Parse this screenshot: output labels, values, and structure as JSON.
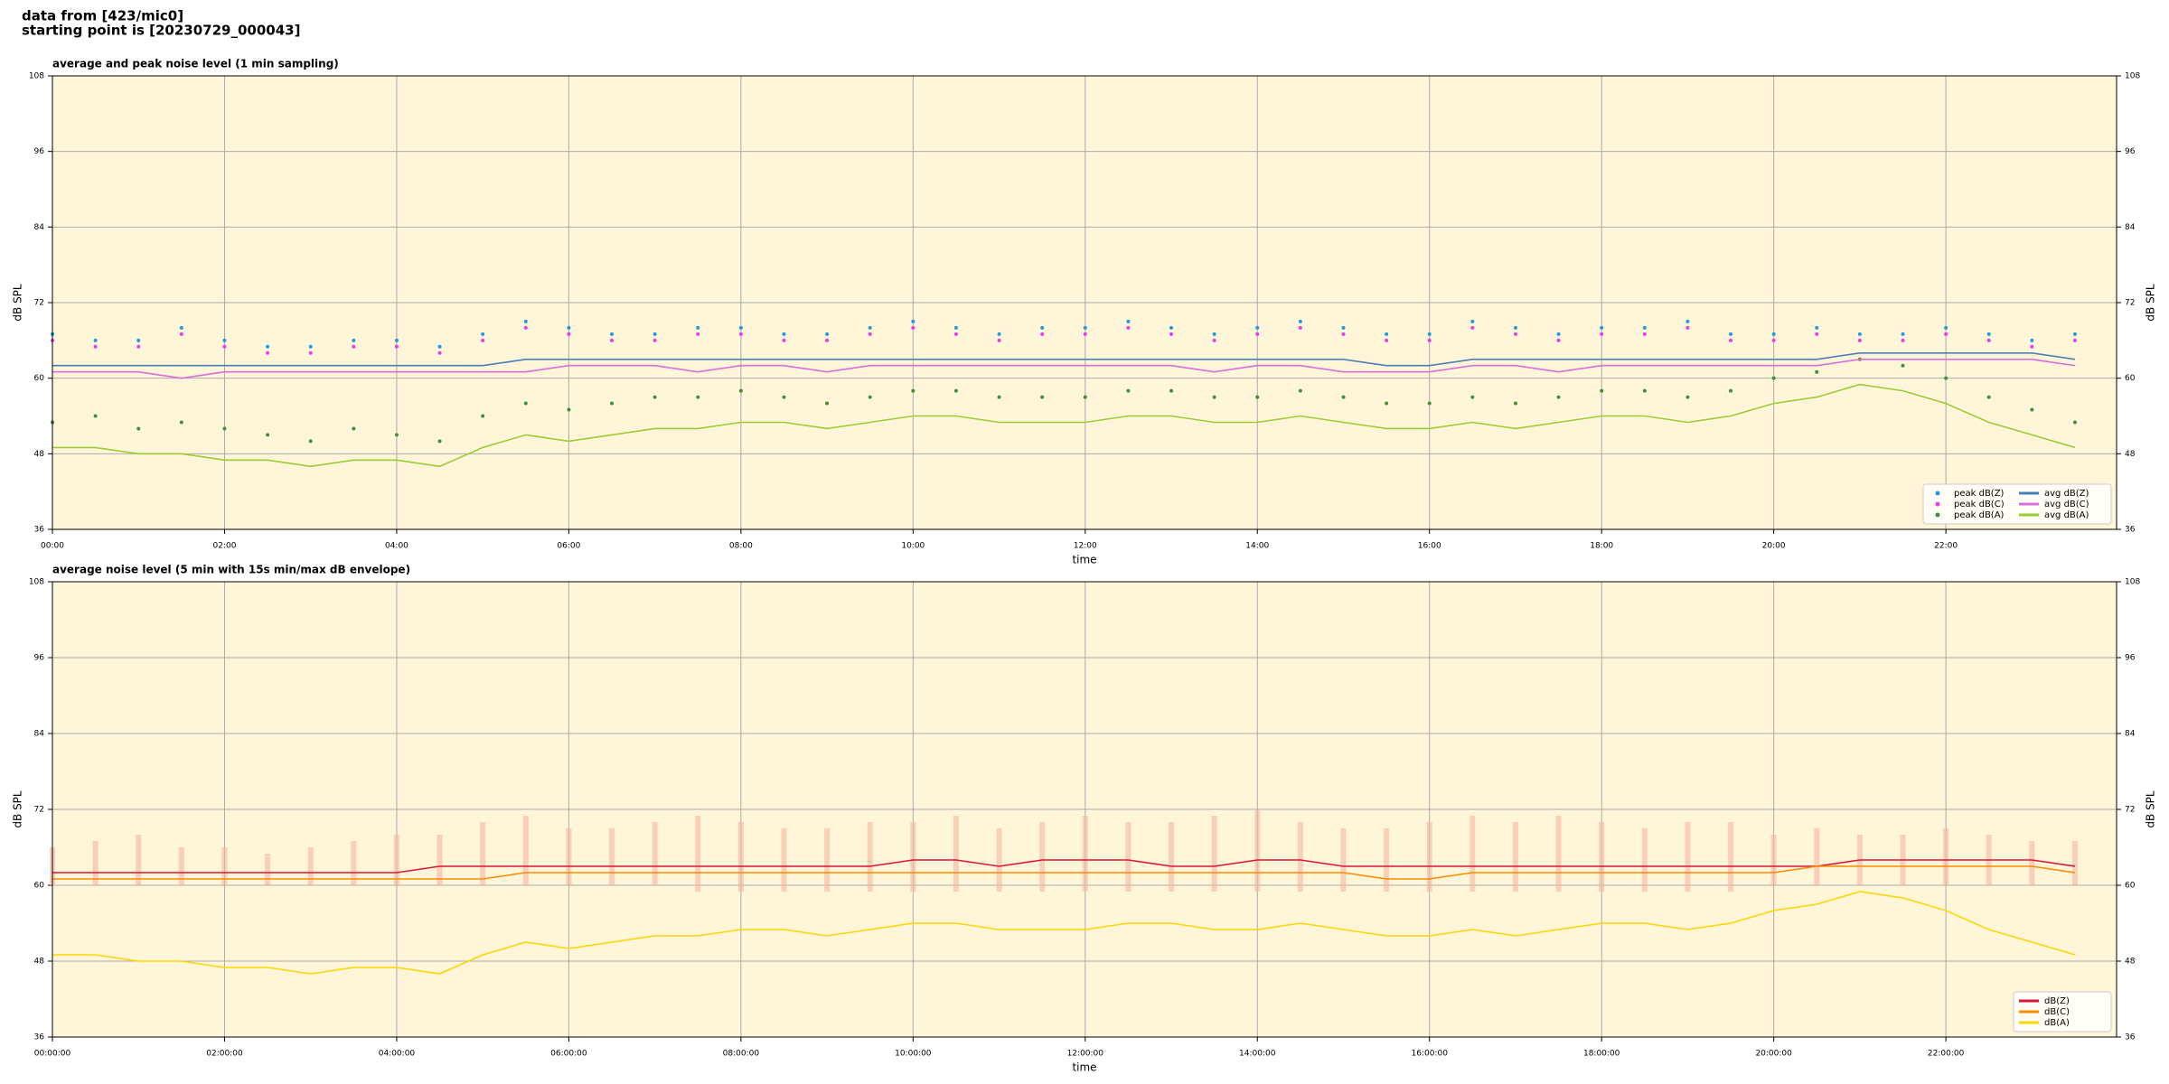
{
  "header": {
    "line1": "data from [423/mic0]",
    "line2": "starting point is [20230729_000043]"
  },
  "chart_data": [
    {
      "type": "line",
      "title": "average and peak noise level (1 min sampling)",
      "xlabel": "time",
      "ylabel": "dB SPL",
      "background": "#fff5d9",
      "grid": true,
      "legend": "lower right",
      "x": [
        "00:00",
        "00:30",
        "01:00",
        "01:30",
        "02:00",
        "02:30",
        "03:00",
        "03:30",
        "04:00",
        "04:30",
        "05:00",
        "05:30",
        "06:00",
        "06:30",
        "07:00",
        "07:30",
        "08:00",
        "08:30",
        "09:00",
        "09:30",
        "10:00",
        "10:30",
        "11:00",
        "11:30",
        "12:00",
        "12:30",
        "13:00",
        "13:30",
        "14:00",
        "14:30",
        "15:00",
        "15:30",
        "16:00",
        "16:30",
        "17:00",
        "17:30",
        "18:00",
        "18:30",
        "19:00",
        "19:30",
        "20:00",
        "20:30",
        "21:00",
        "21:30",
        "22:00",
        "22:30",
        "23:00",
        "23:30"
      ],
      "xlim": [
        "00:00",
        "23:59"
      ],
      "xticks": [
        "00:00",
        "02:00",
        "04:00",
        "06:00",
        "08:00",
        "10:00",
        "12:00",
        "14:00",
        "16:00",
        "18:00",
        "20:00",
        "22:00"
      ],
      "ylim": [
        36,
        108
      ],
      "yticks": [
        36,
        48,
        60,
        72,
        84,
        96,
        108
      ],
      "series": [
        {
          "name": "peak dB(Z)",
          "color": "#1f9be0",
          "mark": "dot",
          "values": [
            67,
            66,
            66,
            68,
            66,
            65,
            65,
            66,
            66,
            65,
            67,
            69,
            68,
            67,
            67,
            68,
            68,
            67,
            67,
            68,
            69,
            68,
            67,
            68,
            68,
            69,
            68,
            67,
            68,
            69,
            68,
            67,
            67,
            69,
            68,
            67,
            68,
            68,
            69,
            67,
            67,
            68,
            67,
            67,
            68,
            67,
            66,
            67
          ]
        },
        {
          "name": "peak dB(C)",
          "color": "#e83ee8",
          "mark": "dot",
          "values": [
            66,
            65,
            65,
            67,
            65,
            64,
            64,
            65,
            65,
            64,
            66,
            68,
            67,
            66,
            66,
            67,
            67,
            66,
            66,
            67,
            68,
            67,
            66,
            67,
            67,
            68,
            67,
            66,
            67,
            68,
            67,
            66,
            66,
            68,
            67,
            66,
            67,
            67,
            68,
            66,
            66,
            67,
            66,
            66,
            67,
            66,
            65,
            66
          ]
        },
        {
          "name": "peak dB(A)",
          "color": "#3f8f3f",
          "mark": "dot",
          "values": [
            53,
            54,
            52,
            53,
            52,
            51,
            50,
            52,
            51,
            50,
            54,
            56,
            55,
            56,
            57,
            57,
            58,
            57,
            56,
            57,
            58,
            58,
            57,
            57,
            57,
            58,
            58,
            57,
            57,
            58,
            57,
            56,
            56,
            57,
            56,
            57,
            58,
            58,
            57,
            58,
            60,
            61,
            63,
            62,
            60,
            57,
            55,
            53
          ]
        },
        {
          "name": "avg dB(Z)",
          "color": "#4a7fb5",
          "mark": "line",
          "values": [
            62,
            62,
            62,
            62,
            62,
            62,
            62,
            62,
            62,
            62,
            62,
            63,
            63,
            63,
            63,
            63,
            63,
            63,
            63,
            63,
            63,
            63,
            63,
            63,
            63,
            63,
            63,
            63,
            63,
            63,
            63,
            62,
            62,
            63,
            63,
            63,
            63,
            63,
            63,
            63,
            63,
            63,
            64,
            64,
            64,
            64,
            64,
            63
          ]
        },
        {
          "name": "avg dB(C)",
          "color": "#d96fd9",
          "mark": "line",
          "values": [
            61,
            61,
            61,
            60,
            61,
            61,
            61,
            61,
            61,
            61,
            61,
            61,
            62,
            62,
            62,
            61,
            62,
            62,
            61,
            62,
            62,
            62,
            62,
            62,
            62,
            62,
            62,
            61,
            62,
            62,
            61,
            61,
            61,
            62,
            62,
            61,
            62,
            62,
            62,
            62,
            62,
            62,
            63,
            63,
            63,
            63,
            63,
            62
          ]
        },
        {
          "name": "avg dB(A)",
          "color": "#9acd32",
          "mark": "line",
          "values": [
            49,
            49,
            48,
            48,
            47,
            47,
            46,
            47,
            47,
            46,
            49,
            51,
            50,
            51,
            52,
            52,
            53,
            53,
            52,
            53,
            54,
            54,
            53,
            53,
            53,
            54,
            54,
            53,
            53,
            54,
            53,
            52,
            52,
            53,
            52,
            53,
            54,
            54,
            53,
            54,
            56,
            57,
            59,
            58,
            56,
            53,
            51,
            49
          ]
        }
      ]
    },
    {
      "type": "line",
      "title": "average noise level (5 min with 15s min/max dB envelope)",
      "xlabel": "time",
      "ylabel": "dB SPL",
      "background": "#fff5d9",
      "grid": true,
      "legend": "lower right",
      "x": [
        "00:00:00",
        "00:30:00",
        "01:00:00",
        "01:30:00",
        "02:00:00",
        "02:30:00",
        "03:00:00",
        "03:30:00",
        "04:00:00",
        "04:30:00",
        "05:00:00",
        "05:30:00",
        "06:00:00",
        "06:30:00",
        "07:00:00",
        "07:30:00",
        "08:00:00",
        "08:30:00",
        "09:00:00",
        "09:30:00",
        "10:00:00",
        "10:30:00",
        "11:00:00",
        "11:30:00",
        "12:00:00",
        "12:30:00",
        "13:00:00",
        "13:30:00",
        "14:00:00",
        "14:30:00",
        "15:00:00",
        "15:30:00",
        "16:00:00",
        "16:30:00",
        "17:00:00",
        "17:30:00",
        "18:00:00",
        "18:30:00",
        "19:00:00",
        "19:30:00",
        "20:00:00",
        "20:30:00",
        "21:00:00",
        "21:30:00",
        "22:00:00",
        "22:30:00",
        "23:00:00",
        "23:30:00"
      ],
      "xlim": [
        "00:00:00",
        "23:59:00"
      ],
      "xticks": [
        "00:00:00",
        "02:00:00",
        "04:00:00",
        "06:00:00",
        "08:00:00",
        "10:00:00",
        "12:00:00",
        "14:00:00",
        "16:00:00",
        "18:00:00",
        "20:00:00",
        "22:00:00"
      ],
      "ylim": [
        36,
        108
      ],
      "yticks": [
        36,
        48,
        60,
        72,
        84,
        96,
        108
      ],
      "envelope": {
        "color": "#f5b8a0",
        "max": [
          66,
          67,
          68,
          66,
          66,
          65,
          66,
          67,
          68,
          68,
          70,
          71,
          69,
          69,
          70,
          71,
          70,
          69,
          69,
          70,
          70,
          71,
          69,
          70,
          71,
          70,
          70,
          71,
          72,
          70,
          69,
          69,
          70,
          71,
          70,
          71,
          70,
          69,
          70,
          70,
          68,
          69,
          68,
          68,
          69,
          68,
          67,
          67
        ],
        "min": [
          60,
          60,
          60,
          60,
          60,
          60,
          60,
          60,
          60,
          60,
          60,
          60,
          60,
          60,
          60,
          59,
          59,
          59,
          59,
          59,
          59,
          59,
          59,
          59,
          59,
          59,
          59,
          59,
          59,
          59,
          59,
          59,
          59,
          59,
          59,
          59,
          59,
          59,
          59,
          59,
          60,
          60,
          60,
          60,
          60,
          60,
          60,
          60
        ]
      },
      "series": [
        {
          "name": "dB(Z)",
          "color": "#dc143c",
          "mark": "line",
          "values": [
            62,
            62,
            62,
            62,
            62,
            62,
            62,
            62,
            62,
            63,
            63,
            63,
            63,
            63,
            63,
            63,
            63,
            63,
            63,
            63,
            64,
            64,
            63,
            64,
            64,
            64,
            63,
            63,
            64,
            64,
            63,
            63,
            63,
            63,
            63,
            63,
            63,
            63,
            63,
            63,
            63,
            63,
            64,
            64,
            64,
            64,
            64,
            63
          ]
        },
        {
          "name": "dB(C)",
          "color": "#ff8c00",
          "mark": "line",
          "values": [
            61,
            61,
            61,
            61,
            61,
            61,
            61,
            61,
            61,
            61,
            61,
            62,
            62,
            62,
            62,
            62,
            62,
            62,
            62,
            62,
            62,
            62,
            62,
            62,
            62,
            62,
            62,
            62,
            62,
            62,
            62,
            61,
            61,
            62,
            62,
            62,
            62,
            62,
            62,
            62,
            62,
            63,
            63,
            63,
            63,
            63,
            63,
            62
          ]
        },
        {
          "name": "dB(A)",
          "color": "#ffd700",
          "mark": "line",
          "values": [
            49,
            49,
            48,
            48,
            47,
            47,
            46,
            47,
            47,
            46,
            49,
            51,
            50,
            51,
            52,
            52,
            53,
            53,
            52,
            53,
            54,
            54,
            53,
            53,
            53,
            54,
            54,
            53,
            53,
            54,
            53,
            52,
            52,
            53,
            52,
            53,
            54,
            54,
            53,
            54,
            56,
            57,
            59,
            58,
            56,
            53,
            51,
            49
          ]
        }
      ]
    }
  ]
}
